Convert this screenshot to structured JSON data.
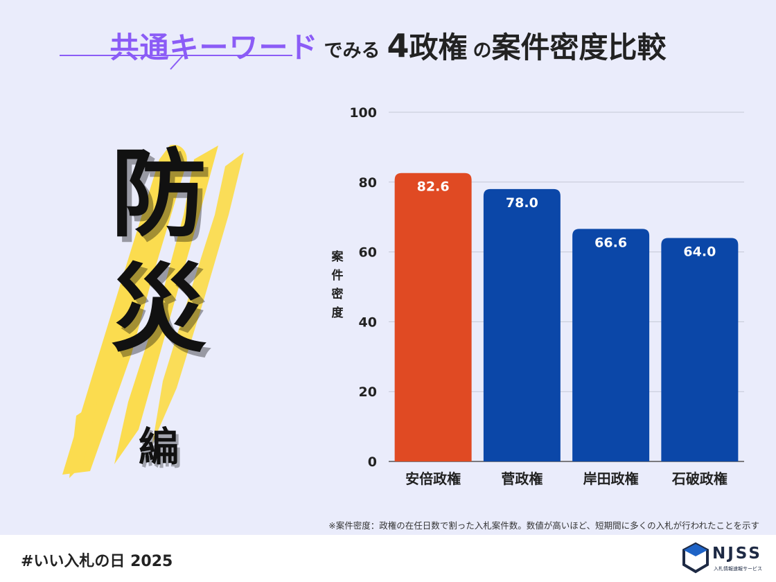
{
  "title": {
    "keyword": "共通キーワード",
    "connector": "でみる",
    "number": "4",
    "part1": "政権",
    "particle": "の",
    "part2": "案件密度比較"
  },
  "theme": {
    "main_char_1": "防",
    "main_char_2": "災",
    "suffix": "編"
  },
  "chart_data": {
    "type": "bar",
    "categories": [
      "安倍政権",
      "菅政権",
      "岸田政権",
      "石破政権"
    ],
    "values": [
      82.6,
      78.0,
      66.6,
      64.0
    ],
    "value_labels": [
      "82.6",
      "78.0",
      "66.6",
      "64.0"
    ],
    "colors": [
      "#e04a23",
      "#0b47a8",
      "#0b47a8",
      "#0b47a8"
    ],
    "ylabel": "案件密度",
    "ylim": [
      0,
      100
    ],
    "yticks": [
      0,
      20,
      40,
      60,
      80,
      100
    ],
    "grid": true
  },
  "footnote": "※案件密度：政権の在任日数で割った入札案件数。数値が高いほど、短期間に多くの入札が行われたことを示す",
  "footer": {
    "hashtag": "#いい入札の日 2025",
    "brand": "NJSS",
    "brand_sub": "入札情報速報サービス"
  },
  "colors": {
    "background": "#eaecfb",
    "accent_purple": "#8b5cf6",
    "highlight_bar": "#e04a23",
    "bar_blue": "#0b47a8",
    "brush_yellow": "#fbdc4f"
  }
}
